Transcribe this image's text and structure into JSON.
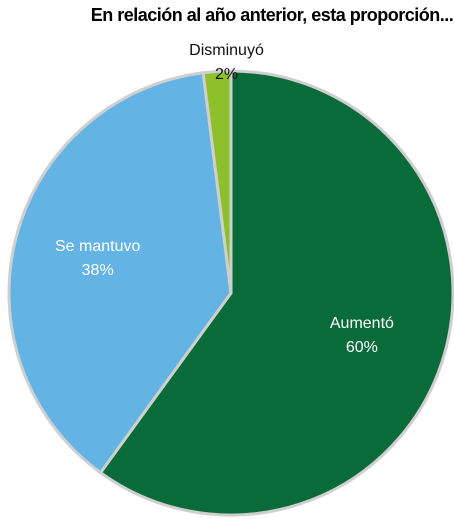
{
  "chart_data": {
    "type": "pie",
    "title": "En relación al año anterior, esta proporción...",
    "categories": [
      "Aumentó",
      "Se mantuvo",
      "Disminuyó"
    ],
    "values": [
      60,
      38,
      2
    ],
    "value_labels": [
      "60%",
      "38%",
      "2%"
    ],
    "colors": [
      "#0a6b3a",
      "#63b4e4",
      "#8ec02b"
    ]
  }
}
